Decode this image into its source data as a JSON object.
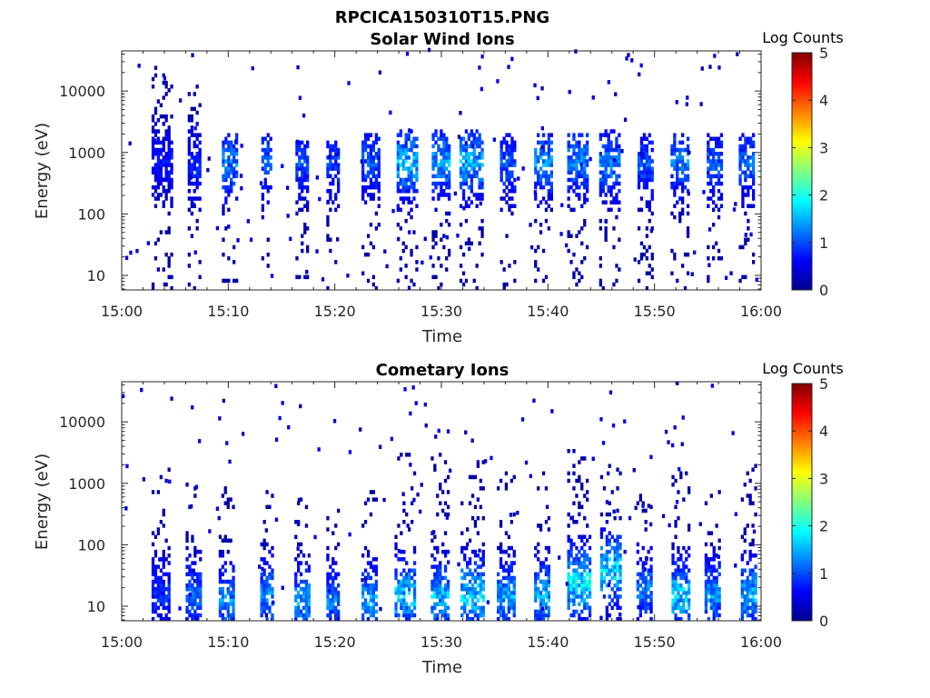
{
  "figure_title": "RPCICA150310T15.PNG",
  "colorbar": {
    "label": "Log Counts",
    "ticks": [
      "0",
      "1",
      "2",
      "3",
      "4",
      "5"
    ],
    "range": [
      0,
      5
    ],
    "colormap": "jet"
  },
  "chart_data": [
    {
      "type": "heatmap",
      "title": "Solar Wind Ions",
      "xlabel": "Time",
      "ylabel": "Energy (eV)",
      "x_ticks": [
        "15:00",
        "15:10",
        "15:20",
        "15:30",
        "15:40",
        "15:50",
        "16:00"
      ],
      "xlim_minutes": [
        0,
        60
      ],
      "y_ticks": [
        "10",
        "100",
        "1000",
        "10000"
      ],
      "ylim": [
        5.8,
        45000
      ],
      "yscale": "log",
      "value_scale": "log10 counts, 0-5",
      "bursts": [
        {
          "t": 3.7,
          "w": 1.8,
          "lo": 5.8,
          "hi": 25000,
          "core": 700,
          "peak": 0.6
        },
        {
          "t": 6.8,
          "w": 1.2,
          "lo": 5.8,
          "hi": 15000,
          "core": 600,
          "peak": 0.7
        },
        {
          "t": 10.1,
          "w": 1.4,
          "lo": 5.8,
          "hi": 2000,
          "core": 650,
          "peak": 1.2
        },
        {
          "t": 13.6,
          "w": 1.0,
          "lo": 5.8,
          "hi": 2000,
          "core": 700,
          "peak": 1.0
        },
        {
          "t": 16.9,
          "w": 1.2,
          "lo": 5.8,
          "hi": 1500,
          "core": 650,
          "peak": 0.9
        },
        {
          "t": 19.8,
          "w": 1.2,
          "lo": 5.8,
          "hi": 1500,
          "core": 650,
          "peak": 0.9
        },
        {
          "t": 23.3,
          "w": 1.6,
          "lo": 5.8,
          "hi": 2000,
          "core": 700,
          "peak": 1.0
        },
        {
          "t": 26.8,
          "w": 2.0,
          "lo": 5.8,
          "hi": 2500,
          "core": 700,
          "peak": 1.5
        },
        {
          "t": 29.9,
          "w": 1.6,
          "lo": 5.8,
          "hi": 2500,
          "core": 700,
          "peak": 1.4
        },
        {
          "t": 32.8,
          "w": 2.2,
          "lo": 5.8,
          "hi": 2500,
          "core": 700,
          "peak": 1.5
        },
        {
          "t": 36.2,
          "w": 1.4,
          "lo": 5.8,
          "hi": 2000,
          "core": 650,
          "peak": 1.0
        },
        {
          "t": 39.5,
          "w": 1.6,
          "lo": 5.8,
          "hi": 2000,
          "core": 700,
          "peak": 1.3
        },
        {
          "t": 42.8,
          "w": 2.0,
          "lo": 5.8,
          "hi": 2000,
          "core": 700,
          "peak": 1.2
        },
        {
          "t": 45.7,
          "w": 1.8,
          "lo": 5.8,
          "hi": 2500,
          "core": 650,
          "peak": 1.2
        },
        {
          "t": 49.1,
          "w": 1.4,
          "lo": 5.8,
          "hi": 2000,
          "core": 650,
          "peak": 1.0
        },
        {
          "t": 52.3,
          "w": 1.6,
          "lo": 5.8,
          "hi": 2000,
          "core": 700,
          "peak": 1.2
        },
        {
          "t": 55.6,
          "w": 1.4,
          "lo": 5.8,
          "hi": 2000,
          "core": 650,
          "peak": 1.0
        },
        {
          "t": 58.6,
          "w": 1.4,
          "lo": 5.8,
          "hi": 2000,
          "core": 700,
          "peak": 1.1
        }
      ]
    },
    {
      "type": "heatmap",
      "title": "Cometary Ions",
      "xlabel": "Time",
      "ylabel": "Energy (eV)",
      "x_ticks": [
        "15:00",
        "15:10",
        "15:20",
        "15:30",
        "15:40",
        "15:50",
        "16:00"
      ],
      "xlim_minutes": [
        0,
        60
      ],
      "y_ticks": [
        "10",
        "100",
        "1000",
        "10000"
      ],
      "ylim": [
        5.8,
        45000
      ],
      "yscale": "log",
      "value_scale": "log10 counts, 0-5",
      "bursts": [
        {
          "t": 3.6,
          "w": 1.6,
          "lo": 5.8,
          "hi": 1700,
          "core": 15,
          "peak": 0.8
        },
        {
          "t": 6.7,
          "w": 1.4,
          "lo": 5.8,
          "hi": 2000,
          "core": 15,
          "peak": 1.1
        },
        {
          "t": 9.8,
          "w": 1.4,
          "lo": 5.8,
          "hi": 1000,
          "core": 12,
          "peak": 1.3
        },
        {
          "t": 13.6,
          "w": 1.2,
          "lo": 5.8,
          "hi": 800,
          "core": 15,
          "peak": 1.3
        },
        {
          "t": 16.9,
          "w": 1.4,
          "lo": 5.8,
          "hi": 600,
          "core": 12,
          "peak": 1.4
        },
        {
          "t": 19.8,
          "w": 1.2,
          "lo": 5.8,
          "hi": 500,
          "core": 12,
          "peak": 1.2
        },
        {
          "t": 23.2,
          "w": 1.4,
          "lo": 5.8,
          "hi": 800,
          "core": 12,
          "peak": 1.4
        },
        {
          "t": 26.6,
          "w": 2.0,
          "lo": 5.8,
          "hi": 3000,
          "core": 15,
          "peak": 1.6
        },
        {
          "t": 29.8,
          "w": 1.6,
          "lo": 5.8,
          "hi": 3000,
          "core": 15,
          "peak": 1.5
        },
        {
          "t": 32.9,
          "w": 2.2,
          "lo": 5.8,
          "hi": 2500,
          "core": 15,
          "peak": 1.7
        },
        {
          "t": 36.0,
          "w": 1.6,
          "lo": 5.8,
          "hi": 1500,
          "core": 15,
          "peak": 1.4
        },
        {
          "t": 39.4,
          "w": 1.4,
          "lo": 5.8,
          "hi": 1500,
          "core": 15,
          "peak": 1.5
        },
        {
          "t": 42.9,
          "w": 2.2,
          "lo": 5.8,
          "hi": 4000,
          "core": 25,
          "peak": 1.8
        },
        {
          "t": 45.9,
          "w": 2.0,
          "lo": 5.8,
          "hi": 2000,
          "core": 40,
          "peak": 1.7
        },
        {
          "t": 49.0,
          "w": 1.4,
          "lo": 5.8,
          "hi": 1500,
          "core": 20,
          "peak": 1.2
        },
        {
          "t": 52.4,
          "w": 1.6,
          "lo": 5.8,
          "hi": 1500,
          "core": 15,
          "peak": 1.6
        },
        {
          "t": 55.4,
          "w": 1.4,
          "lo": 5.8,
          "hi": 800,
          "core": 15,
          "peak": 1.3
        },
        {
          "t": 58.8,
          "w": 1.4,
          "lo": 5.8,
          "hi": 2000,
          "core": 15,
          "peak": 1.5
        }
      ]
    }
  ]
}
